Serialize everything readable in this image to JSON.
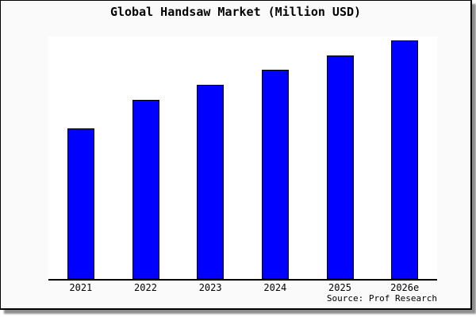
{
  "window": {
    "background_color": "#FAFAFA",
    "plot_background_color": "#FFFFFF",
    "frame_border_color": "#000000",
    "shadow_color": "#8f8f8f"
  },
  "chart_data": {
    "type": "bar",
    "title": "Global Handsaw Market (Million USD)",
    "xlabel": "",
    "ylabel": "",
    "categories": [
      "2021",
      "2022",
      "2023",
      "2024",
      "2025",
      "2026e"
    ],
    "values": [
      63.1,
      75.1,
      81.4,
      87.7,
      93.7,
      100
    ],
    "ylim": [
      0,
      101.7
    ],
    "value_scale_note": "y-axis unlabeled; values estimated relative to 2026e bar = 100",
    "grid": false,
    "legend": null,
    "bar_color": "#0000FF",
    "bar_edge_color": "#000000",
    "axis_line_color": "#000000"
  },
  "source": {
    "text": "Source: Prof Research"
  }
}
